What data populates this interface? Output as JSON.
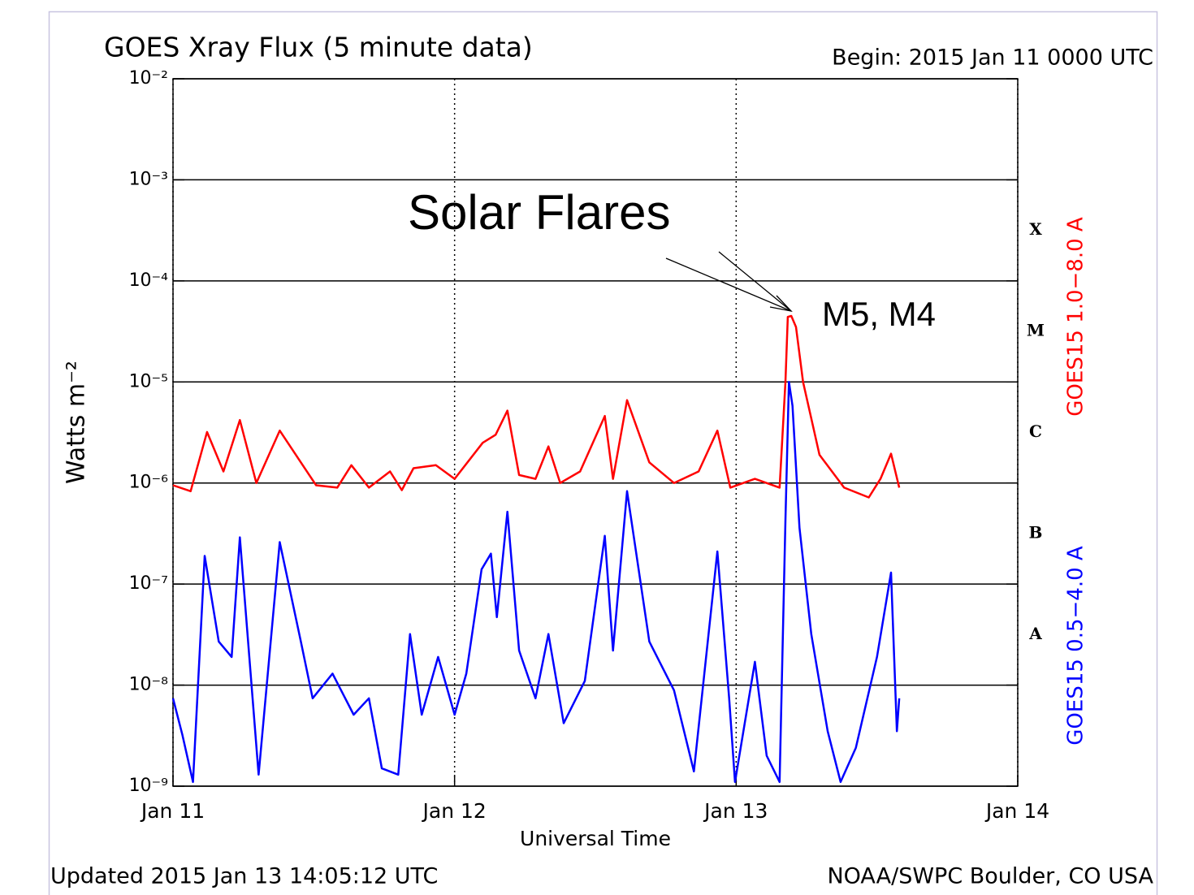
{
  "chart_data": {
    "type": "line",
    "title": "GOES Xray Flux (5 minute data)",
    "begin": "Begin:  2015 Jan 11 0000 UTC",
    "updated": "Updated 2015 Jan 13 14:05:12 UTC",
    "credit": "NOAA/SWPC Boulder, CO USA",
    "xlabel": "Universal Time",
    "ylabel": "Watts m⁻²",
    "annotations": [
      "Solar Flares",
      "M5, M4"
    ],
    "class_labels": [
      "X",
      "M",
      "C",
      "B",
      "A"
    ],
    "log_y": true,
    "grid": true,
    "xlim": [
      0,
      72
    ],
    "xticks": [
      {
        "value": 0,
        "label": "Jan 11"
      },
      {
        "value": 24,
        "label": "Jan 12"
      },
      {
        "value": 48,
        "label": "Jan 13"
      },
      {
        "value": 72,
        "label": "Jan 14"
      }
    ],
    "ylim": [
      1e-09,
      0.01
    ],
    "yticks": [
      {
        "value": 1e-09,
        "label": "10⁻⁹"
      },
      {
        "value": 1e-08,
        "label": "10⁻⁸"
      },
      {
        "value": 1e-07,
        "label": "10⁻⁷"
      },
      {
        "value": 1e-06,
        "label": "10⁻⁶"
      },
      {
        "value": 1e-05,
        "label": "10⁻⁵"
      },
      {
        "value": 0.0001,
        "label": "10⁻⁴"
      },
      {
        "value": 0.001,
        "label": "10⁻³"
      },
      {
        "value": 0.01,
        "label": "10⁻²"
      }
    ],
    "series": [
      {
        "name": "GOES15 1.0−8.0 A",
        "color": "#ff0000",
        "x": [
          0,
          1.5,
          2.9,
          4.3,
          5.7,
          7.1,
          9.1,
          10.9,
          12.2,
          14.0,
          15.2,
          16.7,
          18.5,
          19.5,
          20.5,
          22.4,
          24.0,
          26.4,
          27.5,
          28.5,
          29.5,
          30.9,
          32.0,
          33.0,
          34.7,
          36.8,
          37.5,
          38.7,
          40.6,
          42.7,
          44.8,
          46.4,
          47.5,
          49.6,
          51.7,
          52.2,
          52.4,
          52.7,
          53.1,
          53.7,
          55.1,
          57.2,
          59.3,
          60.3,
          61.2,
          61.9
        ],
        "values": [
          9.5e-07,
          8.3e-07,
          3.2e-06,
          1.3e-06,
          4.2e-06,
          1e-06,
          3.3e-06,
          1.6e-06,
          9.5e-07,
          9e-07,
          1.5e-06,
          9e-07,
          1.3e-06,
          8.5e-07,
          1.4e-06,
          1.5e-06,
          1.1e-06,
          2.5e-06,
          3e-06,
          5.2e-06,
          1.2e-06,
          1.1e-06,
          2.3e-06,
          1e-06,
          1.3e-06,
          4.6e-06,
          1.1e-06,
          6.6e-06,
          1.6e-06,
          1e-06,
          1.3e-06,
          3.3e-06,
          9e-07,
          1.1e-06,
          9e-07,
          1e-05,
          4.4e-05,
          4.5e-05,
          3.5e-05,
          1e-05,
          1.9e-06,
          9e-07,
          7.2e-07,
          1.1e-06,
          1.95e-06,
          9e-07
        ]
      },
      {
        "name": "GOES15 0.5−4.0 A",
        "color": "#0000ff",
        "x": [
          0,
          0.8,
          1.7,
          2.7,
          3.9,
          5.0,
          5.7,
          7.3,
          9.1,
          10.9,
          11.9,
          13.6,
          15.4,
          16.7,
          17.8,
          19.2,
          20.2,
          21.2,
          22.6,
          24.0,
          25.0,
          26.3,
          27.1,
          27.6,
          28.5,
          29.5,
          30.9,
          32.0,
          33.3,
          35.1,
          36.8,
          37.5,
          38.7,
          40.6,
          42.7,
          44.4,
          46.4,
          47.4,
          47.9,
          49.6,
          50.6,
          51.7,
          52.2,
          52.5,
          52.8,
          53.4,
          54.4,
          55.8,
          56.9,
          58.2,
          60.0,
          61.2,
          61.7,
          61.9
        ],
        "values": [
          7.4e-09,
          3.2e-09,
          1.1e-09,
          1.9e-07,
          2.7e-08,
          1.9e-08,
          2.9e-07,
          1.3e-09,
          2.6e-07,
          2.7e-08,
          7.4e-09,
          1.3e-08,
          5.1e-09,
          7.4e-09,
          1.5e-09,
          1.3e-09,
          3.2e-08,
          5.1e-09,
          1.9e-08,
          5.1e-09,
          1.3e-08,
          1.4e-07,
          2e-07,
          4.7e-08,
          5.2e-07,
          2.2e-08,
          7.4e-09,
          3.2e-08,
          4.2e-09,
          1.1e-08,
          3e-07,
          2.2e-08,
          8.3e-07,
          2.7e-08,
          8.9e-09,
          1.4e-09,
          2.1e-07,
          7.4e-09,
          1.1e-09,
          1.7e-08,
          2e-09,
          1.1e-09,
          4.3e-07,
          1e-05,
          5.8e-06,
          3.6e-07,
          3.2e-08,
          3.5e-09,
          1.1e-09,
          2.4e-09,
          1.9e-08,
          1.3e-07,
          3.5e-09,
          7.4e-09
        ]
      }
    ]
  }
}
